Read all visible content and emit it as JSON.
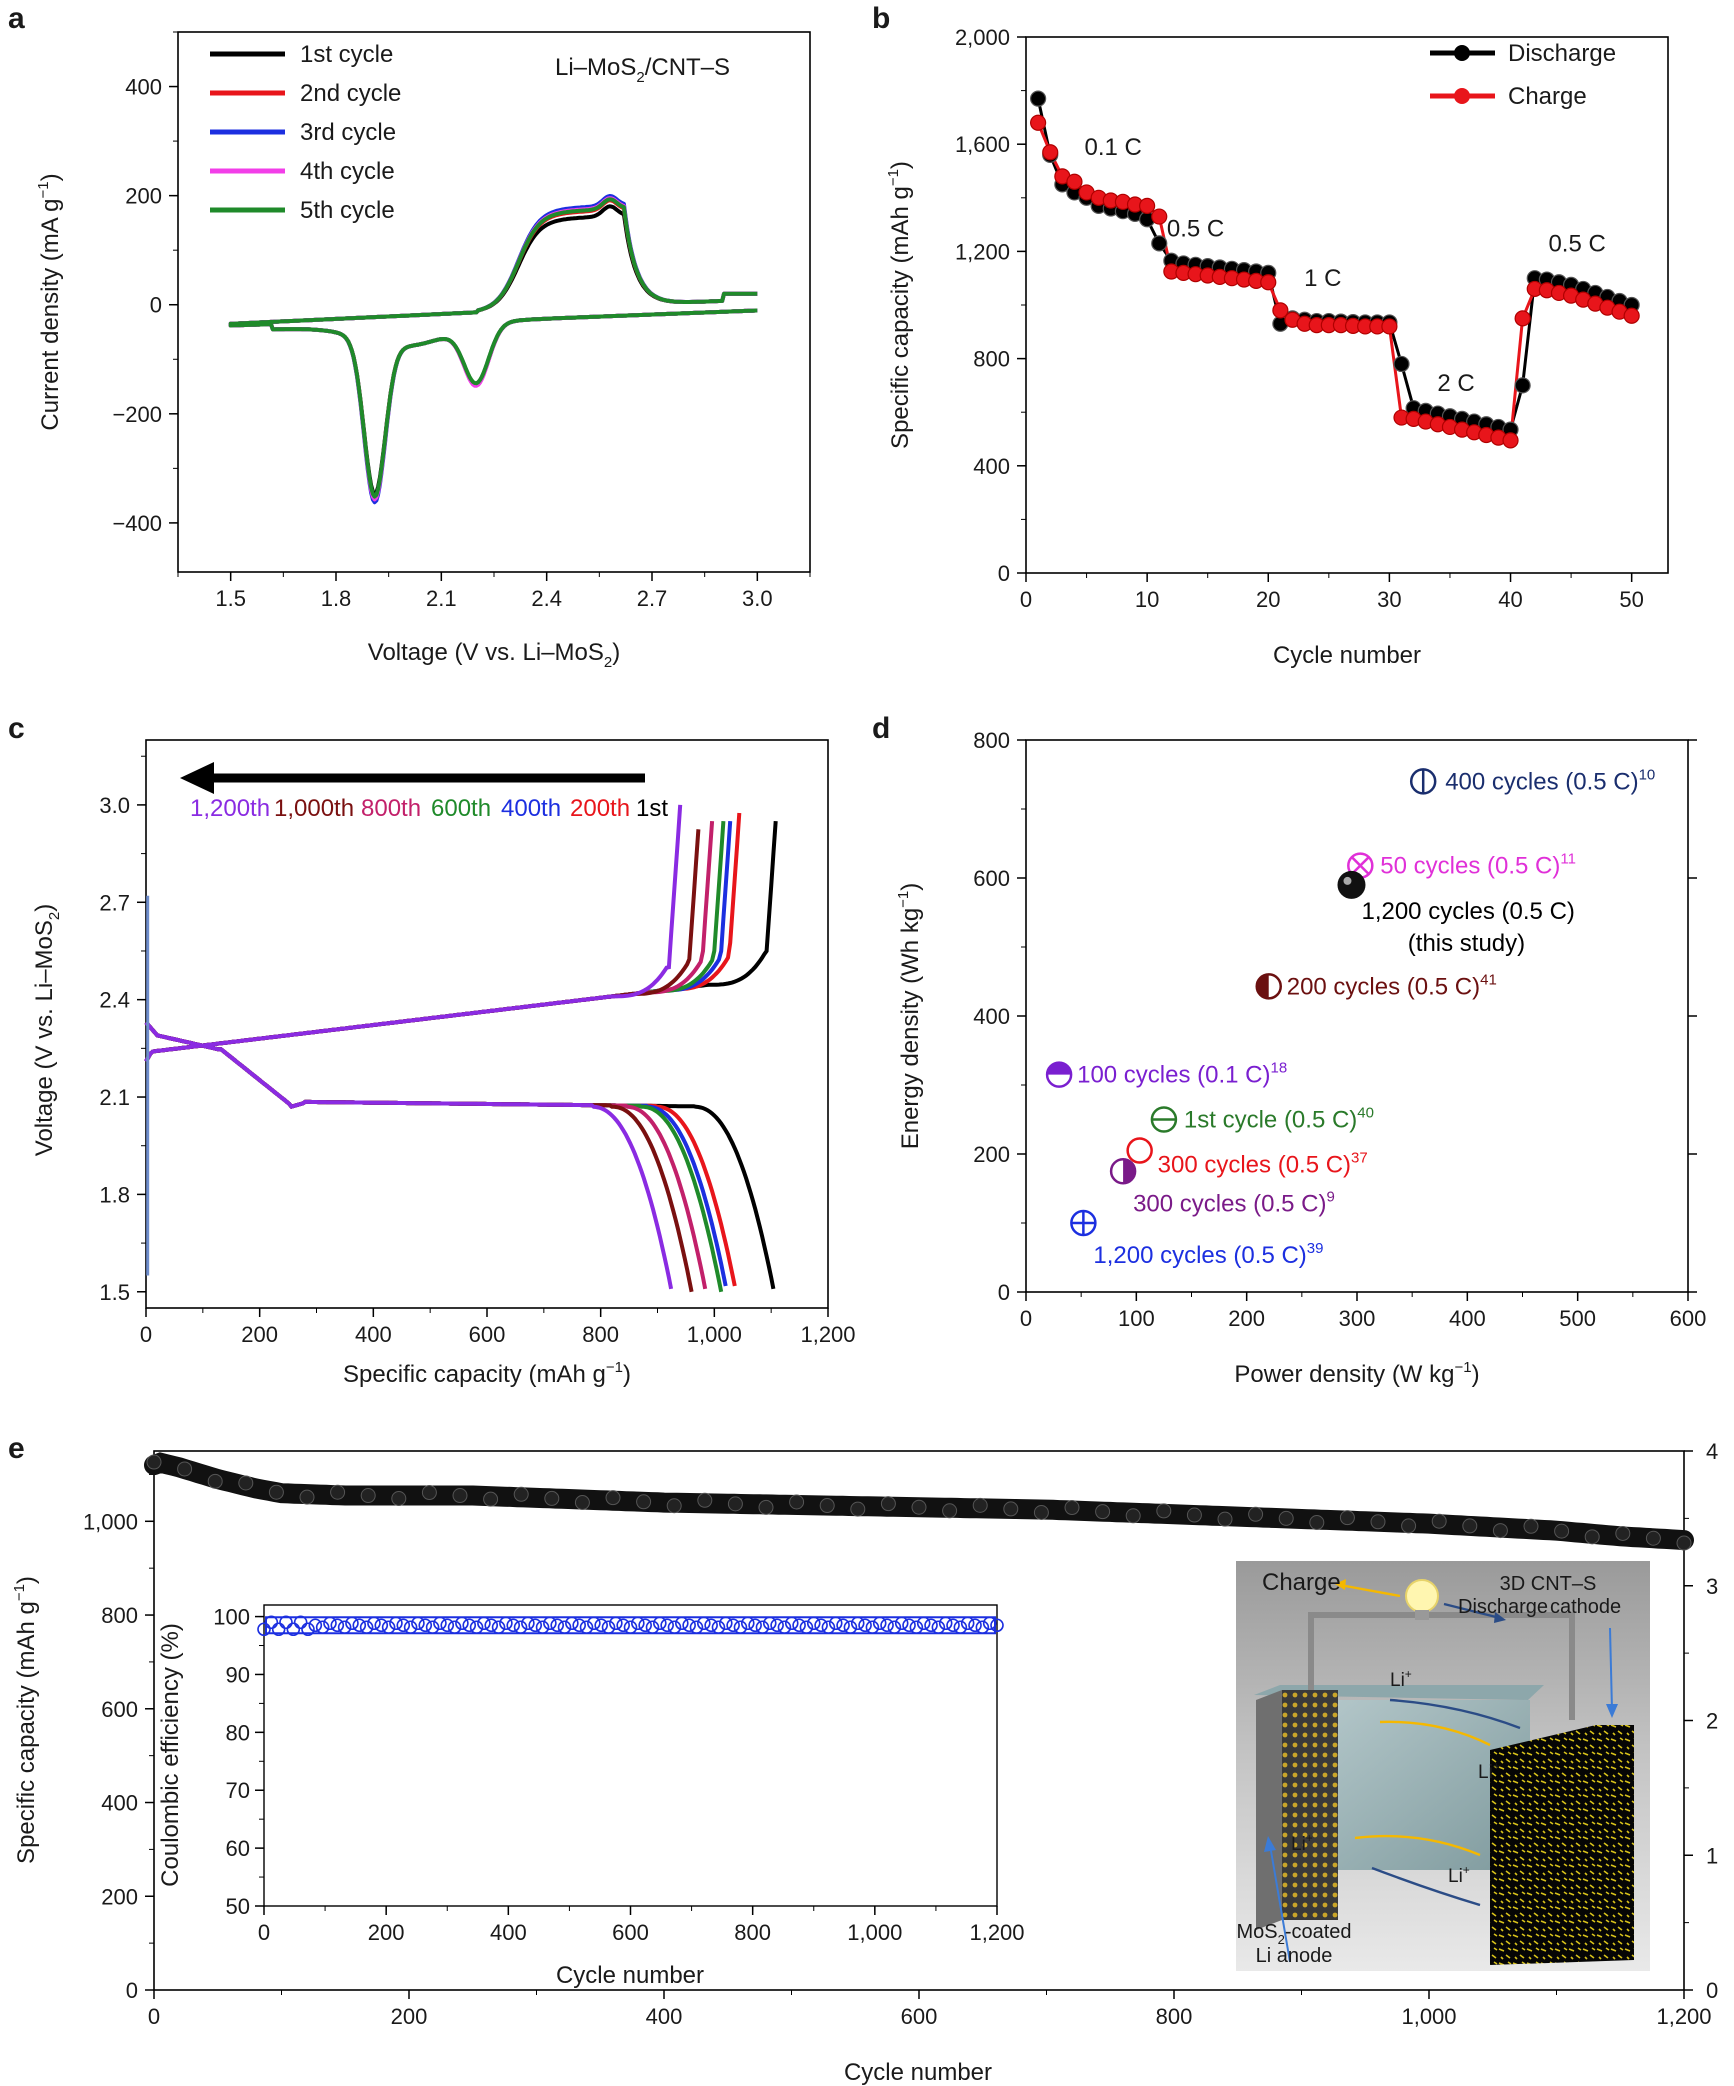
{
  "panels": {
    "a": {
      "label": "a",
      "type": "line",
      "annotation": {
        "base": "Li–MoS",
        "sub": "2",
        "rest": "/CNT–S"
      },
      "xlabel": {
        "pre": "Voltage (V vs. Li–MoS",
        "sub": "2",
        "post": ")"
      },
      "ylabel": {
        "pre": "Current density (mA g",
        "sup": "−1",
        "post": ")"
      },
      "xlim": [
        1.35,
        3.15
      ],
      "ylim": [
        -490,
        500
      ],
      "xticks": [
        {
          "v": 1.5,
          "t": "1.5"
        },
        {
          "v": 1.8,
          "t": "1.8"
        },
        {
          "v": 2.1,
          "t": "2.1"
        },
        {
          "v": 2.4,
          "t": "2.4"
        },
        {
          "v": 2.7,
          "t": "2.7"
        },
        {
          "v": 3.0,
          "t": "3.0"
        }
      ],
      "yticks": [
        {
          "v": -400,
          "t": "−400"
        },
        {
          "v": -200,
          "t": "−200"
        },
        {
          "v": 0,
          "t": "0"
        },
        {
          "v": 200,
          "t": "200"
        },
        {
          "v": 400,
          "t": "400"
        }
      ],
      "legend_position": "top-left",
      "series": [
        {
          "name": "1st cycle",
          "color": "#000000",
          "peak_ox": 225,
          "peak_red1": -325,
          "peak_red2": -130
        },
        {
          "name": "2nd cycle",
          "color": "#e8151b",
          "peak_ox": 236,
          "peak_red1": -332,
          "peak_red2": -128
        },
        {
          "name": "3rd cycle",
          "color": "#1c2fe0",
          "peak_ox": 244,
          "peak_red1": -342,
          "peak_red2": -128
        },
        {
          "name": "4th cycle",
          "color": "#f23ee8",
          "peak_ox": 240,
          "peak_red1": -336,
          "peak_red2": -132
        },
        {
          "name": "5th cycle",
          "color": "#1f8a2a",
          "peak_ox": 238,
          "peak_red1": -330,
          "peak_red2": -126
        }
      ]
    },
    "b": {
      "label": "b",
      "type": "scatter-line",
      "xlabel": "Cycle number",
      "ylabel": {
        "pre": "Specific capacity (mAh g",
        "sup": "−1",
        "post": ")"
      },
      "xlim": [
        0,
        53
      ],
      "ylim": [
        0,
        2000
      ],
      "xticks": [
        {
          "v": 0,
          "t": "0"
        },
        {
          "v": 10,
          "t": "10"
        },
        {
          "v": 20,
          "t": "20"
        },
        {
          "v": 30,
          "t": "30"
        },
        {
          "v": 40,
          "t": "40"
        },
        {
          "v": 50,
          "t": "50"
        }
      ],
      "yticks": [
        {
          "v": 0,
          "t": "0"
        },
        {
          "v": 400,
          "t": "400"
        },
        {
          "v": 800,
          "t": "800"
        },
        {
          "v": 1200,
          "t": "1,200"
        },
        {
          "v": 1600,
          "t": "1,600"
        },
        {
          "v": 2000,
          "t": "2,000"
        }
      ],
      "legend_position": "top-right",
      "rate_labels": [
        {
          "text": "0.1 C",
          "x": 7.2,
          "y": 1560
        },
        {
          "text": "0.5 C",
          "x": 14,
          "y": 1255
        },
        {
          "text": "1 C",
          "x": 24.5,
          "y": 1070
        },
        {
          "text": "2 C",
          "x": 35.5,
          "y": 680
        },
        {
          "text": "0.5 C",
          "x": 45.5,
          "y": 1200
        }
      ],
      "x": [
        1,
        2,
        3,
        4,
        5,
        6,
        7,
        8,
        9,
        10,
        11,
        12,
        13,
        14,
        15,
        16,
        17,
        18,
        19,
        20,
        21,
        22,
        23,
        24,
        25,
        26,
        27,
        28,
        29,
        30,
        31,
        32,
        33,
        34,
        35,
        36,
        37,
        38,
        39,
        40,
        41,
        42,
        43,
        44,
        45,
        46,
        47,
        48,
        49,
        50
      ],
      "series": [
        {
          "name": "Discharge",
          "color": "#000000",
          "values": [
            1770,
            1560,
            1450,
            1420,
            1400,
            1370,
            1360,
            1350,
            1340,
            1320,
            1230,
            1165,
            1155,
            1150,
            1145,
            1140,
            1135,
            1130,
            1125,
            1120,
            930,
            950,
            945,
            940,
            940,
            938,
            936,
            935,
            935,
            935,
            780,
            615,
            605,
            595,
            585,
            575,
            565,
            555,
            545,
            535,
            700,
            1100,
            1095,
            1085,
            1075,
            1060,
            1045,
            1030,
            1015,
            1000
          ]
        },
        {
          "name": "Charge",
          "color": "#e8151b",
          "values": [
            1680,
            1570,
            1480,
            1460,
            1420,
            1400,
            1390,
            1385,
            1375,
            1370,
            1330,
            1125,
            1120,
            1115,
            1110,
            1105,
            1100,
            1095,
            1090,
            1085,
            980,
            945,
            930,
            925,
            925,
            925,
            922,
            920,
            920,
            920,
            580,
            575,
            565,
            555,
            545,
            535,
            525,
            515,
            505,
            495,
            950,
            1060,
            1055,
            1045,
            1035,
            1020,
            1005,
            990,
            975,
            960
          ]
        }
      ]
    },
    "c": {
      "label": "c",
      "type": "line",
      "xlabel": {
        "pre": "Specific capacity (mAh g",
        "sup": "−1",
        "post": ")"
      },
      "ylabel": {
        "pre": "Voltage (V vs. Li–MoS",
        "sub": "2",
        "post": ")"
      },
      "xlim": [
        0,
        1200
      ],
      "ylim": [
        1.45,
        3.2
      ],
      "xticks": [
        {
          "v": 0,
          "t": "0"
        },
        {
          "v": 200,
          "t": "200"
        },
        {
          "v": 400,
          "t": "400"
        },
        {
          "v": 600,
          "t": "600"
        },
        {
          "v": 800,
          "t": "800"
        },
        {
          "v": 1000,
          "t": "1,000"
        },
        {
          "v": 1200,
          "t": "1,200"
        }
      ],
      "yticks": [
        {
          "v": 1.5,
          "t": "1.5"
        },
        {
          "v": 1.8,
          "t": "1.8"
        },
        {
          "v": 2.1,
          "t": "2.1"
        },
        {
          "v": 2.4,
          "t": "2.4"
        },
        {
          "v": 2.7,
          "t": "2.7"
        },
        {
          "v": 3.0,
          "t": "3.0"
        }
      ],
      "arrow_direction": "decreasing capacity",
      "series": [
        {
          "name": "1,200th",
          "color": "#8a2be2",
          "discharge_end": 925,
          "charge_end": 940
        },
        {
          "name": "1,000th",
          "color": "#7a1010",
          "discharge_end": 960,
          "charge_end": 975
        },
        {
          "name": "800th",
          "color": "#c2206a",
          "discharge_end": 985,
          "charge_end": 998
        },
        {
          "name": "600th",
          "color": "#1f8a2a",
          "discharge_end": 1012,
          "charge_end": 1018
        },
        {
          "name": "400th",
          "color": "#1c2fe0",
          "discharge_end": 1022,
          "charge_end": 1030
        },
        {
          "name": "200th",
          "color": "#e8151b",
          "discharge_end": 1038,
          "charge_end": 1045
        },
        {
          "name": "1st",
          "color": "#000000",
          "discharge_end": 1105,
          "charge_end": 1110
        }
      ]
    },
    "d": {
      "label": "d",
      "type": "scatter",
      "xlabel": {
        "pre": "Power density (W kg",
        "sup": "−1",
        "post": ")"
      },
      "ylabel": {
        "pre": "Energy density (Wh kg",
        "sup": "−1",
        "post": ")"
      },
      "xlim": [
        0,
        600
      ],
      "ylim": [
        0,
        800
      ],
      "xticks": [
        {
          "v": 0,
          "t": "0"
        },
        {
          "v": 100,
          "t": "100"
        },
        {
          "v": 200,
          "t": "200"
        },
        {
          "v": 300,
          "t": "300"
        },
        {
          "v": 400,
          "t": "400"
        },
        {
          "v": 500,
          "t": "500"
        },
        {
          "v": 600,
          "t": "600"
        }
      ],
      "yticks": [
        {
          "v": 0,
          "t": "0"
        },
        {
          "v": 200,
          "t": "200"
        },
        {
          "v": 400,
          "t": "400"
        },
        {
          "v": 600,
          "t": "600"
        },
        {
          "v": 800,
          "t": "800"
        }
      ],
      "points": [
        {
          "x": 360,
          "y": 740,
          "label": "400 cycles (0.5 C)",
          "ref": "10",
          "color": "#1a2e6e",
          "marker": "circle-vline"
        },
        {
          "x": 303,
          "y": 618,
          "label": "50 cycles (0.5 C)",
          "ref": "11",
          "color": "#e030d8",
          "marker": "circle-x"
        },
        {
          "x": 295,
          "y": 590,
          "label": "1,200 cycles (0.5 C)",
          "label2": "(this study)",
          "ref": "",
          "color": "#000000",
          "marker": "sphere"
        },
        {
          "x": 220,
          "y": 443,
          "label": "200 cycles (0.5 C)",
          "ref": "41",
          "color": "#6b1010",
          "marker": "half-left"
        },
        {
          "x": 30,
          "y": 315,
          "label": "100 cycles (0.1 C)",
          "ref": "18",
          "color": "#7a1fd0",
          "marker": "half-top"
        },
        {
          "x": 125,
          "y": 250,
          "label": "1st cycle (0.5 C)",
          "ref": "40",
          "color": "#2a7a2a",
          "marker": "circle-hline"
        },
        {
          "x": 103,
          "y": 205,
          "label": "300 cycles (0.5 C)",
          "ref": "37",
          "color": "#e8151b",
          "marker": "circle-open"
        },
        {
          "x": 88,
          "y": 175,
          "label": "300 cycles (0.5 C)",
          "ref": "9",
          "color": "#7a1a88",
          "marker": "half-right"
        },
        {
          "x": 52,
          "y": 100,
          "label": "1,200 cycles (0.5 C)",
          "ref": "39",
          "color": "#1c2fe0",
          "marker": "circle-plus"
        }
      ]
    },
    "e": {
      "label": "e",
      "type": "scatter",
      "xlabel": "Cycle number",
      "ylabel": {
        "pre": "Specific capacity (mAh g",
        "sup": "−1",
        "post": ")"
      },
      "xlim": [
        0,
        1200
      ],
      "ylim": [
        0,
        1150
      ],
      "xticks": [
        {
          "v": 0,
          "t": "0"
        },
        {
          "v": 200,
          "t": "200"
        },
        {
          "v": 400,
          "t": "400"
        },
        {
          "v": 600,
          "t": "600"
        },
        {
          "v": 800,
          "t": "800"
        },
        {
          "v": 1000,
          "t": "1,000"
        },
        {
          "v": 1200,
          "t": "1,200"
        }
      ],
      "yticks": [
        {
          "v": 0,
          "t": "0"
        },
        {
          "v": 200,
          "t": "200"
        },
        {
          "v": 400,
          "t": "400"
        },
        {
          "v": 600,
          "t": "600"
        },
        {
          "v": 800,
          "t": "800"
        },
        {
          "v": 1000,
          "t": "1,000"
        }
      ],
      "y2lim": [
        0,
        4
      ],
      "y2ticks": [
        {
          "v": 0,
          "t": "0"
        },
        {
          "v": 1,
          "t": "1"
        },
        {
          "v": 2,
          "t": "2"
        },
        {
          "v": 3,
          "t": "3"
        },
        {
          "v": 4,
          "t": "4"
        }
      ],
      "capacity": {
        "x": [
          0,
          5,
          20,
          50,
          80,
          100,
          150,
          200,
          250,
          300,
          400,
          500,
          600,
          700,
          800,
          900,
          1000,
          1100,
          1150,
          1200
        ],
        "y": [
          1120,
          1125,
          1115,
          1090,
          1070,
          1060,
          1055,
          1055,
          1055,
          1050,
          1040,
          1035,
          1030,
          1025,
          1015,
          1005,
          995,
          980,
          968,
          960
        ]
      },
      "inset": {
        "xlabel": "Cycle number",
        "ylabel": "Coulombic efficiency (%)",
        "xlim": [
          0,
          1200
        ],
        "ylim": [
          50,
          102
        ],
        "xticks": [
          {
            "v": 0,
            "t": "0"
          },
          {
            "v": 200,
            "t": "200"
          },
          {
            "v": 400,
            "t": "400"
          },
          {
            "v": 600,
            "t": "600"
          },
          {
            "v": 800,
            "t": "800"
          },
          {
            "v": 1000,
            "t": "1,000"
          },
          {
            "v": 1200,
            "t": "1,200"
          }
        ],
        "yticks": [
          {
            "v": 50,
            "t": "50"
          },
          {
            "v": 60,
            "t": "60"
          },
          {
            "v": 70,
            "t": "70"
          },
          {
            "v": 80,
            "t": "80"
          },
          {
            "v": 90,
            "t": "90"
          },
          {
            "v": 100,
            "t": "100"
          }
        ],
        "color": "#1c2fe0",
        "ce_value": 98.5
      },
      "schematic": {
        "charge": "Charge",
        "discharge": "Discharge",
        "cathode_top": "3D CNT–S",
        "cathode_bottom": "cathode",
        "li": "Li",
        "li_sup": "+",
        "anode_line1_pre": "MoS",
        "anode_line1_sub": "2",
        "anode_line1_post": "-coated",
        "anode_line2": "Li anode"
      }
    }
  }
}
